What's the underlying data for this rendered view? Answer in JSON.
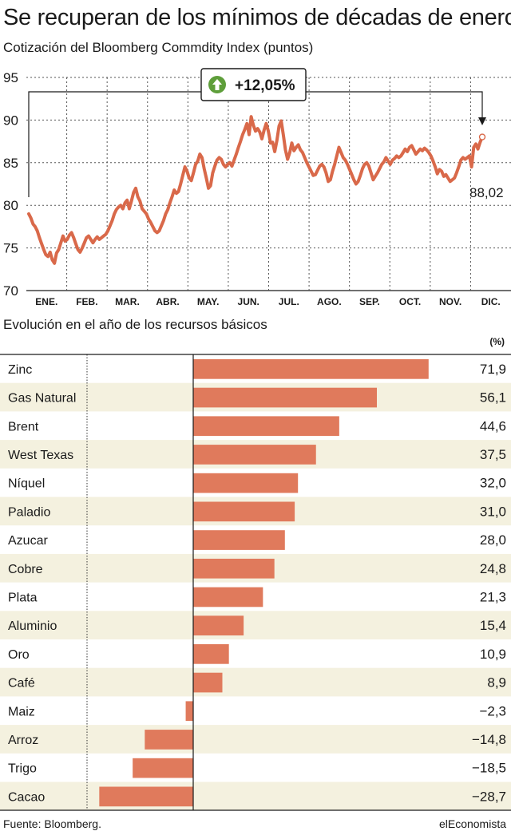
{
  "title": "Se recuperan de los mínimos de décadas de enero",
  "line_chart_subtitle": "Cotización del Bloomberg Commdity Index (puntos)",
  "bar_chart_subtitle": "Evolución en el año de los recursos básicos",
  "bar_unit": "(%)",
  "source": "Fuente: Bloomberg.",
  "brand": "elEconomista",
  "colors": {
    "line": "#d9694a",
    "bar": "#e07a5c",
    "band": "#f4f1df",
    "badge": "#5e9e3a"
  },
  "chart_data": [
    {
      "type": "line",
      "title": "Cotización del Bloomberg Commdity Index (puntos)",
      "x_ticks": [
        "ENE.",
        "FEB.",
        "MAR.",
        "ABR.",
        "MAY.",
        "JUN.",
        "JUL.",
        "AGO.",
        "SEP.",
        "OCT.",
        "NOV.",
        "DIC."
      ],
      "y_ticks": [
        70,
        75,
        80,
        85,
        90,
        95
      ],
      "ylim": [
        70,
        95
      ],
      "grid": true,
      "series": [
        {
          "values": [
            79.0,
            78.5,
            77.8,
            77.5,
            77.0,
            76.2,
            75.5,
            74.8,
            74.2,
            74.0,
            74.5,
            73.6,
            73.2,
            74.4,
            74.8,
            75.6,
            76.4,
            75.8,
            76.0,
            76.5,
            76.8,
            76.2,
            75.5,
            74.8,
            74.5,
            75.0,
            75.6,
            76.2,
            76.4,
            76.0,
            75.6,
            76.0,
            76.3,
            76.0,
            76.2,
            76.4,
            76.6,
            77.0,
            77.6,
            78.2,
            79.0,
            79.5,
            79.8,
            80.0,
            79.6,
            80.3,
            80.6,
            79.6,
            80.5,
            81.5,
            82.0,
            81.0,
            80.5,
            79.6,
            79.3,
            79.0,
            78.4,
            78.0,
            77.5,
            77.0,
            76.8,
            77.0,
            77.6,
            78.2,
            79.0,
            79.5,
            80.3,
            81.0,
            81.8,
            81.4,
            81.6,
            82.5,
            83.5,
            84.5,
            84.0,
            83.2,
            82.9,
            83.8,
            84.8,
            85.2,
            86.0,
            85.6,
            84.3,
            83.2,
            82.0,
            82.3,
            83.8,
            84.6,
            85.3,
            85.6,
            85.4,
            84.8,
            84.5,
            84.8,
            85.0,
            84.6,
            85.3,
            86.0,
            86.8,
            87.5,
            88.3,
            88.9,
            89.6,
            88.3,
            90.4,
            89.4,
            88.7,
            89.0,
            88.6,
            87.8,
            88.8,
            89.6,
            88.7,
            87.3,
            87.4,
            86.3,
            87.6,
            89.3,
            89.9,
            88.3,
            86.5,
            85.4,
            86.2,
            87.3,
            86.4,
            86.8,
            87.1,
            86.5,
            86.2,
            85.6,
            85.0,
            84.5,
            84.0,
            83.5,
            83.6,
            84.1,
            84.6,
            84.8,
            84.5,
            83.8,
            82.8,
            83.0,
            84.0,
            84.8,
            85.8,
            86.8,
            86.2,
            85.6,
            85.3,
            84.8,
            84.2,
            83.6,
            83.0,
            82.5,
            82.8,
            83.5,
            84.3,
            84.8,
            85.0,
            84.6,
            83.8,
            83.0,
            83.4,
            83.8,
            84.3,
            84.8,
            85.1,
            85.6,
            85.2,
            84.8,
            85.3,
            85.5,
            85.8,
            85.6,
            85.8,
            86.2,
            86.6,
            86.3,
            86.8,
            87.0,
            86.5,
            86.0,
            86.3,
            86.6,
            86.4,
            86.7,
            86.5,
            86.2,
            85.8,
            85.2,
            84.5,
            83.7,
            84.2,
            84.0,
            83.4,
            83.6,
            83.2,
            82.8,
            83.0,
            83.2,
            83.8,
            84.5,
            85.3,
            85.6,
            85.4,
            85.6,
            85.8,
            84.5,
            86.8,
            87.2,
            86.6,
            87.4,
            88.02
          ]
        }
      ],
      "last_value_label": "88,02",
      "annotation": "+12,05%"
    },
    {
      "type": "bar",
      "orientation": "horizontal",
      "title": "Evolución en el año de los recursos básicos",
      "unit": "(%)",
      "categories": [
        "Zinc",
        "Gas Natural",
        "Brent",
        "West Texas",
        "Níquel",
        "Paladio",
        "Azucar",
        "Cobre",
        "Plata",
        "Aluminio",
        "Oro",
        "Café",
        "Maiz",
        "Arroz",
        "Trigo",
        "Cacao"
      ],
      "values": [
        71.9,
        56.1,
        44.6,
        37.5,
        32.0,
        31.0,
        28.0,
        24.8,
        21.3,
        15.4,
        10.9,
        8.9,
        -2.3,
        -14.8,
        -18.5,
        -28.7
      ],
      "value_labels": [
        "71,9",
        "56,1",
        "44,6",
        "37,5",
        "32,0",
        "31,0",
        "28,0",
        "24,8",
        "21,3",
        "15,4",
        "10,9",
        "8,9",
        "−2,3",
        "−14,8",
        "−18,5",
        "−28,7"
      ]
    }
  ]
}
